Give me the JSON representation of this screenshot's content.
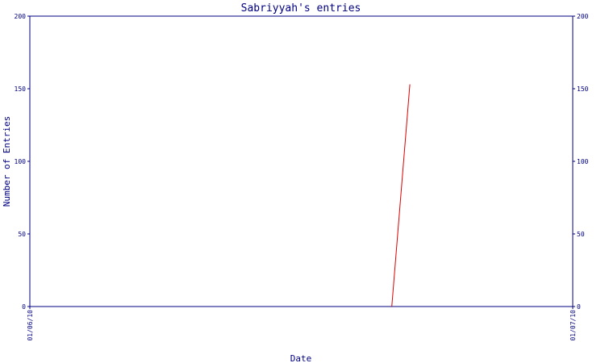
{
  "chart_data": {
    "type": "line",
    "title": "Sabriyyah's entries",
    "xlabel": "Date",
    "ylabel": "Number of Entries",
    "x_ticks": [
      "01/06/10",
      "01/07/10"
    ],
    "y_ticks": [
      "0",
      "50",
      "100",
      "150",
      "200"
    ],
    "ylim": [
      0,
      200
    ],
    "grid": false,
    "series": [
      {
        "x": [
          "2010-06-21",
          "2010-06-22"
        ],
        "values": [
          0,
          153
        ]
      }
    ]
  },
  "colors": {
    "axis": "#000080",
    "series": "#dd0000",
    "background": "#ffffff"
  }
}
